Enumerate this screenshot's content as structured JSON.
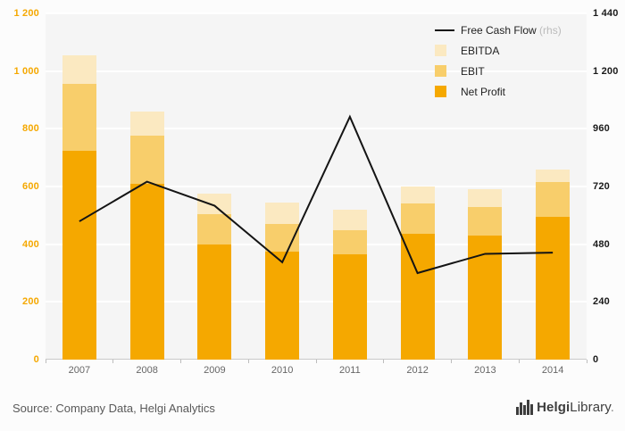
{
  "chart_data": {
    "type": "bar",
    "subtype": "stacked-bars-with-line-overlay",
    "categories": [
      "2007",
      "2008",
      "2009",
      "2010",
      "2011",
      "2012",
      "2013",
      "2014"
    ],
    "series": [
      {
        "name": "Net Profit",
        "type": "bar",
        "color": "#F5A800",
        "values": [
          725,
          610,
          400,
          375,
          365,
          435,
          430,
          495
        ]
      },
      {
        "name": "EBIT",
        "type": "bar",
        "color": "#F8CE6B",
        "values": [
          230,
          165,
          105,
          95,
          85,
          105,
          100,
          120
        ]
      },
      {
        "name": "EBITDA",
        "type": "bar",
        "color": "#FBE9C1",
        "values": [
          100,
          85,
          70,
          75,
          70,
          60,
          60,
          45
        ]
      },
      {
        "name": "Free Cash Flow",
        "type": "line",
        "axis": "right",
        "color": "#141414",
        "values": [
          575,
          740,
          640,
          405,
          1010,
          360,
          440,
          445
        ]
      }
    ],
    "stack_totals": [
      1055,
      860,
      575,
      545,
      520,
      600,
      590,
      660
    ],
    "left_axis": {
      "min": 0,
      "max": 1200,
      "color": "#F5A800",
      "ticks": [
        {
          "value": 1200,
          "label": "1 200"
        },
        {
          "value": 1000,
          "label": "1 000"
        },
        {
          "value": 800,
          "label": "800"
        },
        {
          "value": 600,
          "label": "600"
        },
        {
          "value": 400,
          "label": "400"
        },
        {
          "value": 200,
          "label": "200"
        },
        {
          "value": 0,
          "label": "0"
        }
      ]
    },
    "right_axis": {
      "min": 0,
      "max": 1440,
      "color": "#1A1A1A",
      "ticks": [
        {
          "value": 1440,
          "label": "1 440"
        },
        {
          "value": 1200,
          "label": "1 200"
        },
        {
          "value": 960,
          "label": "960"
        },
        {
          "value": 720,
          "label": "720"
        },
        {
          "value": 480,
          "label": "480"
        },
        {
          "value": 240,
          "label": "240"
        },
        {
          "value": 0,
          "label": "0"
        }
      ]
    },
    "legend": [
      {
        "label": "Free Cash Flow",
        "suffix": " (rhs)",
        "type": "line",
        "color": "#141414"
      },
      {
        "label": "EBITDA",
        "suffix": "",
        "type": "swatch",
        "color": "#FBE9C1"
      },
      {
        "label": "EBIT",
        "suffix": "",
        "type": "swatch",
        "color": "#F8CE6B"
      },
      {
        "label": "Net Profit",
        "suffix": "",
        "type": "swatch",
        "color": "#F5A800"
      }
    ],
    "grid": true,
    "legend_position": "top-right"
  },
  "footer": {
    "source": "Source: Company Data, Helgi Analytics",
    "brand_bold": "Helgi",
    "brand_rest": "Library",
    "brand_suffix": "."
  }
}
